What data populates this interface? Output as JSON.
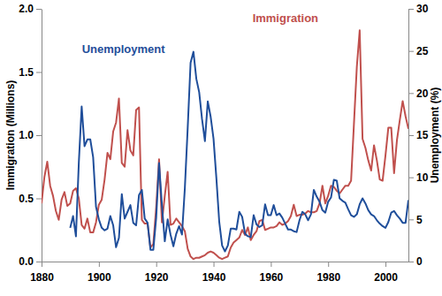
{
  "chart_data": {
    "type": "line",
    "ylabel": "Immigration (Millions)",
    "y2label": "Unemployment (%)",
    "x": [
      1880,
      1881,
      1882,
      1883,
      1884,
      1885,
      1886,
      1887,
      1888,
      1889,
      1890,
      1891,
      1892,
      1893,
      1894,
      1895,
      1896,
      1897,
      1898,
      1899,
      1900,
      1901,
      1902,
      1903,
      1904,
      1905,
      1906,
      1907,
      1908,
      1909,
      1910,
      1911,
      1912,
      1913,
      1914,
      1915,
      1916,
      1917,
      1918,
      1919,
      1920,
      1921,
      1922,
      1923,
      1924,
      1925,
      1926,
      1927,
      1928,
      1929,
      1930,
      1931,
      1932,
      1933,
      1934,
      1935,
      1936,
      1937,
      1938,
      1939,
      1940,
      1941,
      1942,
      1943,
      1944,
      1945,
      1946,
      1947,
      1948,
      1949,
      1950,
      1951,
      1952,
      1953,
      1954,
      1955,
      1956,
      1957,
      1958,
      1959,
      1960,
      1961,
      1962,
      1963,
      1964,
      1965,
      1966,
      1967,
      1968,
      1969,
      1970,
      1971,
      1972,
      1973,
      1974,
      1975,
      1976,
      1977,
      1978,
      1979,
      1980,
      1981,
      1982,
      1983,
      1984,
      1985,
      1986,
      1987,
      1988,
      1989,
      1990,
      1991,
      1992,
      1993,
      1994,
      1995,
      1996,
      1997,
      1998,
      1999,
      2000,
      2001,
      2002,
      2003,
      2004,
      2005,
      2006,
      2007,
      2008
    ],
    "series": [
      {
        "name": "Immigration",
        "color": "#c0504d",
        "values": [
          0.46,
          0.67,
          0.79,
          0.6,
          0.52,
          0.4,
          0.33,
          0.49,
          0.55,
          0.44,
          0.46,
          0.56,
          0.58,
          0.5,
          0.29,
          0.26,
          0.34,
          0.23,
          0.23,
          0.31,
          0.45,
          0.49,
          0.65,
          0.86,
          0.81,
          1.03,
          1.1,
          1.29,
          0.78,
          0.75,
          1.04,
          0.88,
          0.84,
          1.2,
          1.22,
          0.33,
          0.3,
          0.3,
          0.11,
          0.14,
          0.43,
          0.81,
          0.31,
          0.52,
          0.71,
          0.29,
          0.3,
          0.34,
          0.31,
          0.28,
          0.24,
          0.1,
          0.04,
          0.02,
          0.03,
          0.03,
          0.04,
          0.05,
          0.07,
          0.08,
          0.07,
          0.05,
          0.03,
          0.02,
          0.03,
          0.04,
          0.11,
          0.15,
          0.17,
          0.19,
          0.25,
          0.21,
          0.27,
          0.17,
          0.21,
          0.24,
          0.32,
          0.33,
          0.25,
          0.26,
          0.27,
          0.27,
          0.28,
          0.31,
          0.29,
          0.3,
          0.32,
          0.36,
          0.45,
          0.36,
          0.37,
          0.37,
          0.38,
          0.4,
          0.39,
          0.39,
          0.4,
          0.46,
          0.6,
          0.46,
          0.52,
          0.6,
          0.59,
          0.56,
          0.54,
          0.57,
          0.6,
          0.6,
          0.64,
          1.09,
          1.54,
          1.83,
          0.97,
          0.9,
          0.8,
          0.72,
          0.92,
          0.8,
          0.65,
          0.64,
          0.84,
          1.06,
          1.06,
          0.7,
          0.96,
          1.12,
          1.27,
          1.15,
          1.05
        ]
      },
      {
        "name": "Unemployment",
        "color": "#1f4e9a",
        "axis": "y2",
        "values": [
          null,
          null,
          null,
          null,
          null,
          null,
          null,
          null,
          null,
          null,
          4.0,
          5.4,
          3.0,
          11.7,
          18.4,
          13.7,
          14.5,
          14.5,
          12.4,
          6.5,
          5.0,
          4.0,
          3.7,
          3.9,
          5.4,
          4.3,
          1.7,
          2.8,
          8.0,
          5.1,
          5.9,
          6.7,
          4.6,
          4.3,
          7.9,
          8.5,
          5.1,
          4.6,
          1.4,
          1.4,
          5.2,
          11.7,
          6.7,
          2.4,
          5.0,
          3.2,
          1.8,
          3.3,
          4.2,
          3.2,
          8.7,
          15.9,
          23.6,
          24.9,
          21.7,
          20.1,
          16.9,
          14.3,
          19.0,
          17.2,
          14.6,
          9.9,
          4.7,
          1.9,
          1.2,
          1.9,
          3.9,
          3.9,
          3.8,
          5.9,
          5.3,
          3.3,
          3.0,
          2.9,
          5.5,
          4.4,
          4.1,
          4.3,
          6.8,
          5.5,
          5.5,
          6.7,
          5.5,
          5.7,
          5.2,
          4.5,
          3.8,
          3.8,
          3.6,
          3.5,
          4.9,
          5.9,
          5.6,
          4.9,
          5.6,
          8.5,
          7.7,
          7.1,
          6.1,
          5.8,
          7.1,
          7.6,
          9.7,
          9.6,
          7.5,
          7.2,
          7.0,
          6.2,
          5.5,
          5.3,
          5.6,
          6.8,
          7.5,
          6.9,
          6.1,
          5.6,
          5.4,
          4.9,
          4.5,
          4.2,
          4.0,
          4.7,
          5.8,
          6.0,
          5.5,
          5.1,
          4.6,
          4.6,
          7.3
        ]
      }
    ],
    "xlim": [
      1880,
      2008
    ],
    "xticks": [
      1880,
      1900,
      1920,
      1940,
      1960,
      1980,
      2000
    ],
    "ylim": [
      0,
      2
    ],
    "yticks": [
      {
        "value": 0,
        "label": "0.0"
      },
      0.5,
      {
        "value": 1,
        "label": "1.0"
      },
      1.5,
      {
        "value": 2,
        "label": "2.0"
      }
    ],
    "y2lim": [
      0,
      30
    ],
    "y2ticks": [
      0,
      5,
      10,
      15,
      20,
      25,
      30
    ]
  }
}
